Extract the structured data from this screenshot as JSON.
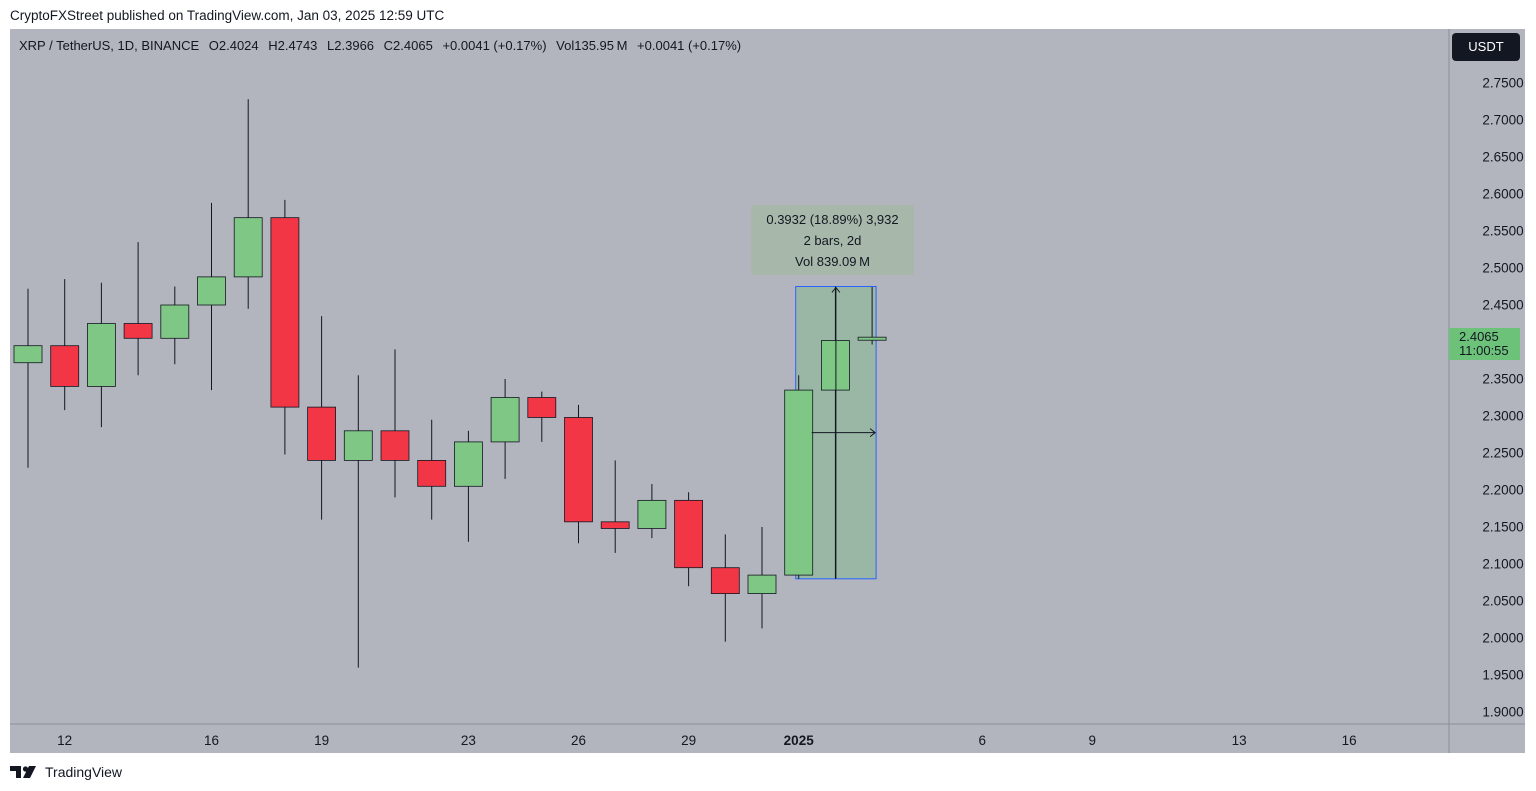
{
  "header": {
    "publisher_line": "CryptoFXStreet published on TradingView.com, Jan 03, 2025 12:59 UTC"
  },
  "legend": {
    "symbol": "XRP / TetherUS, 1D, BINANCE",
    "open": "O2.4024",
    "high": "H2.4743",
    "low": "L2.3966",
    "close": "C2.4065",
    "change": "+0.0041 (+0.17%)",
    "volume": "Vol135.95 M",
    "volume_change": "+0.0041 (+0.17%)"
  },
  "toolbar": {
    "currency_label": "USDT"
  },
  "price_badge": {
    "price": "2.4065",
    "countdown": "11:00:55"
  },
  "measure": {
    "line1": "0.3932 (18.89%) 3,932",
    "line2": "2 bars, 2d",
    "line3": "Vol 839.09 M",
    "from_price": 2.08,
    "to_price": 2.475,
    "from_bar_index": 21,
    "to_bar_index": 23
  },
  "footer": {
    "brand": "TradingView"
  },
  "colors": {
    "background": "#b2b5be",
    "up": "#7fc784",
    "down": "#f23645",
    "wick": "#131722",
    "measure_fill": "#9ab7a5",
    "measure_border": "#2962ff"
  },
  "chart_data": {
    "type": "candlestick",
    "title": "XRP / TetherUS, 1D, BINANCE",
    "ylim": [
      1.87,
      2.79
    ],
    "y_ticks": [
      "2.7500",
      "2.7000",
      "2.6500",
      "2.6000",
      "2.5500",
      "2.5000",
      "2.4500",
      "2.3500",
      "2.3000",
      "2.2500",
      "2.2000",
      "2.1500",
      "2.1000",
      "2.0500",
      "2.0000",
      "1.9500",
      "1.9000"
    ],
    "x_ticks": [
      {
        "label": "12",
        "bar_index": 1,
        "bold": false
      },
      {
        "label": "16",
        "bar_index": 5,
        "bold": false
      },
      {
        "label": "19",
        "bar_index": 8,
        "bold": false
      },
      {
        "label": "23",
        "bar_index": 12,
        "bold": false
      },
      {
        "label": "26",
        "bar_index": 15,
        "bold": false
      },
      {
        "label": "29",
        "bar_index": 18,
        "bold": false
      },
      {
        "label": "2025",
        "bar_index": 21,
        "bold": true
      },
      {
        "label": "6",
        "bar_index": 26,
        "bold": false
      },
      {
        "label": "9",
        "bar_index": 29,
        "bold": false
      },
      {
        "label": "13",
        "bar_index": 33,
        "bold": false
      },
      {
        "label": "16",
        "bar_index": 36,
        "bold": false
      }
    ],
    "candles": [
      {
        "date": "Dec 11",
        "open": 2.372,
        "high": 2.472,
        "low": 2.23,
        "close": 2.395
      },
      {
        "date": "Dec 12",
        "open": 2.395,
        "high": 2.485,
        "low": 2.308,
        "close": 2.34
      },
      {
        "date": "Dec 13",
        "open": 2.34,
        "high": 2.48,
        "low": 2.285,
        "close": 2.425
      },
      {
        "date": "Dec 14",
        "open": 2.425,
        "high": 2.535,
        "low": 2.355,
        "close": 2.405
      },
      {
        "date": "Dec 15",
        "open": 2.405,
        "high": 2.475,
        "low": 2.37,
        "close": 2.45
      },
      {
        "date": "Dec 16",
        "open": 2.45,
        "high": 2.588,
        "low": 2.335,
        "close": 2.488
      },
      {
        "date": "Dec 17",
        "open": 2.488,
        "high": 2.728,
        "low": 2.445,
        "close": 2.568
      },
      {
        "date": "Dec 18",
        "open": 2.568,
        "high": 2.592,
        "low": 2.248,
        "close": 2.312
      },
      {
        "date": "Dec 19",
        "open": 2.312,
        "high": 2.435,
        "low": 2.16,
        "close": 2.24
      },
      {
        "date": "Dec 20",
        "open": 2.24,
        "high": 2.355,
        "low": 1.96,
        "close": 2.28
      },
      {
        "date": "Dec 21",
        "open": 2.28,
        "high": 2.39,
        "low": 2.19,
        "close": 2.24
      },
      {
        "date": "Dec 22",
        "open": 2.24,
        "high": 2.295,
        "low": 2.16,
        "close": 2.205
      },
      {
        "date": "Dec 23",
        "open": 2.205,
        "high": 2.28,
        "low": 2.13,
        "close": 2.265
      },
      {
        "date": "Dec 24",
        "open": 2.265,
        "high": 2.35,
        "low": 2.215,
        "close": 2.325
      },
      {
        "date": "Dec 25",
        "open": 2.325,
        "high": 2.333,
        "low": 2.265,
        "close": 2.298
      },
      {
        "date": "Dec 26",
        "open": 2.298,
        "high": 2.315,
        "low": 2.128,
        "close": 2.157
      },
      {
        "date": "Dec 27",
        "open": 2.157,
        "high": 2.24,
        "low": 2.115,
        "close": 2.148
      },
      {
        "date": "Dec 28",
        "open": 2.148,
        "high": 2.208,
        "low": 2.135,
        "close": 2.186
      },
      {
        "date": "Dec 29",
        "open": 2.186,
        "high": 2.197,
        "low": 2.07,
        "close": 2.095
      },
      {
        "date": "Dec 30",
        "open": 2.095,
        "high": 2.14,
        "low": 1.995,
        "close": 2.06
      },
      {
        "date": "Dec 31",
        "open": 2.06,
        "high": 2.15,
        "low": 2.013,
        "close": 2.085
      },
      {
        "date": "Jan 1",
        "open": 2.085,
        "high": 2.355,
        "low": 2.08,
        "close": 2.335
      },
      {
        "date": "Jan 2",
        "open": 2.335,
        "high": 2.475,
        "low": 2.08,
        "close": 2.402
      },
      {
        "date": "Jan 3",
        "open": 2.4024,
        "high": 2.4743,
        "low": 2.3966,
        "close": 2.4065
      }
    ]
  }
}
